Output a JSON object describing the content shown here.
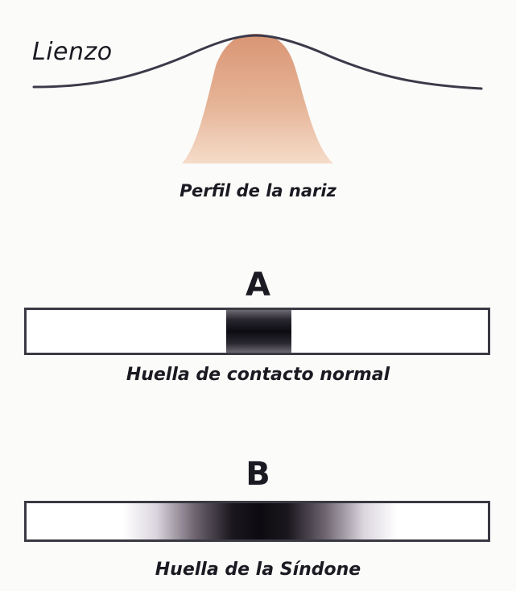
{
  "labels": {
    "canvas": "Lienzo",
    "nose_profile": "Perfil de la nariz",
    "panel_a_letter": "A",
    "panel_a_caption": "Huella de contacto normal",
    "panel_b_letter": "B",
    "panel_b_caption": "Huella de la Síndone"
  },
  "colors": {
    "background": "#fbfbf9",
    "text": "#1b1a22",
    "canvas_line": "#3b3a4a",
    "nose_light": "#f2d7c2",
    "nose_dark": "#d99a7a",
    "strip_border": "#3a3a44",
    "mark_dark": "#0d0c12"
  }
}
